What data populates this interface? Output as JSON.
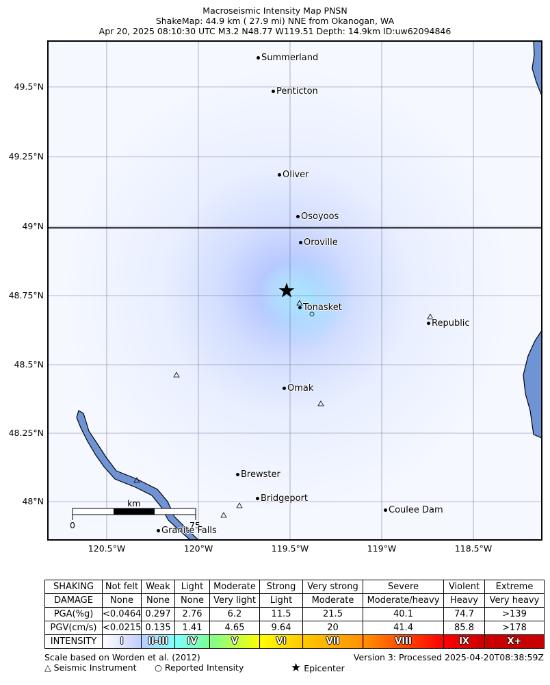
{
  "header": {
    "line1": "Macroseismic Intensity Map PNSN",
    "line2": "ShakeMap: 44.9 km (  27.9 mi) NNE from Okanogan, WA",
    "line3": "Apr 20, 2025 08:10:30 UTC M3.2 N48.77 W119.51 Depth: 14.9km ID:uw62094846"
  },
  "latitude_labels": [
    "49.5°N",
    "49.25°N",
    "49°N",
    "48.75°N",
    "48.5°N",
    "48.25°N",
    "48°N"
  ],
  "longitude_labels": [
    "120.5°W",
    "120°W",
    "119.5°W",
    "119°W",
    "118.5°W"
  ],
  "cities": [
    {
      "name": "Summerland"
    },
    {
      "name": "Penticton"
    },
    {
      "name": "Oliver"
    },
    {
      "name": "Osoyoos"
    },
    {
      "name": "Oroville"
    },
    {
      "name": "Tonasket"
    },
    {
      "name": "Republic"
    },
    {
      "name": "Omak"
    },
    {
      "name": "Brewster"
    },
    {
      "name": "Bridgeport"
    },
    {
      "name": "Coulee Dam"
    },
    {
      "name": "Granite Falls"
    }
  ],
  "scale_bar": {
    "unit": "km",
    "start": "0",
    "end": "75"
  },
  "legend": {
    "shaking_label": "SHAKING",
    "shaking": [
      "Not felt",
      "Weak",
      "Light",
      "Moderate",
      "Strong",
      "Very strong",
      "Severe",
      "Violent",
      "Extreme"
    ],
    "damage_label": "DAMAGE",
    "damage": [
      "None",
      "None",
      "None",
      "Very light",
      "Light",
      "Moderate",
      "Moderate/heavy",
      "Heavy",
      "Very heavy"
    ],
    "pga_label": "PGA(%g)",
    "pga": [
      "<0.0464",
      "0.297",
      "2.76",
      "6.2",
      "11.5",
      "21.5",
      "40.1",
      "74.7",
      ">139"
    ],
    "pgv_label": "PGV(cm/s)",
    "pgv": [
      "<0.0215",
      "0.135",
      "1.41",
      "4.65",
      "9.64",
      "20",
      "41.4",
      "85.8",
      ">178"
    ],
    "intensity_label": "INTENSITY",
    "intensity": [
      "I",
      "II-III",
      "IV",
      "V",
      "VI",
      "VII",
      "VIII",
      "IX",
      "X+"
    ],
    "intensity_colors": [
      "#ffffff",
      "#bfccff",
      "#80ffff",
      "#7aff93",
      "#ffff00",
      "#ffc800",
      "#ff9100",
      "#ff0000",
      "#c80000"
    ]
  },
  "footer": {
    "scale_note": "Scale based on Worden et al. (2012)",
    "version": "Version 3: Processed 2025-04-20T08:38:59Z",
    "seismic_instrument": "Seismic Instrument",
    "reported_intensity": "Reported Intensity",
    "epicenter": "Epicenter"
  },
  "icons": {
    "seismic_instrument": "triangle-outline-icon",
    "reported_intensity": "circle-outline-icon",
    "epicenter": "star-icon"
  },
  "colors": {
    "water": "#6f94d6",
    "background_intensity": "#f2f6ff",
    "epicenter_glow": "#a9d9ff"
  }
}
